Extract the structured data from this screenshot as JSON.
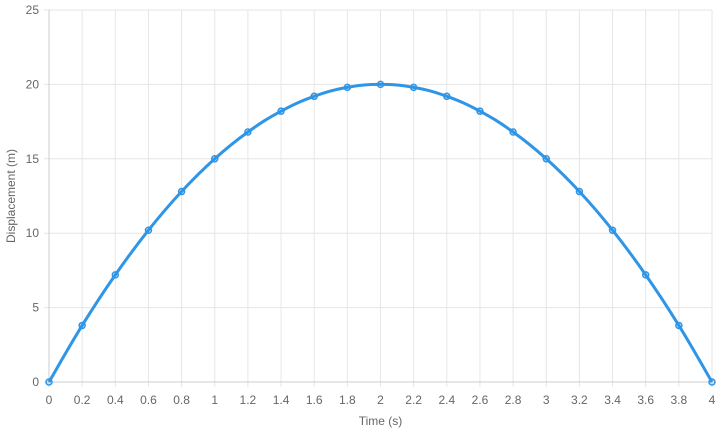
{
  "chart_data": {
    "type": "line",
    "xlabel": "Time (s)",
    "ylabel": "Displacement (m)",
    "x": [
      0,
      0.2,
      0.4,
      0.6,
      0.8,
      1,
      1.2,
      1.4,
      1.6,
      1.8,
      2,
      2.2,
      2.4,
      2.6,
      2.8,
      3,
      3.2,
      3.4,
      3.6,
      3.8,
      4
    ],
    "x_tick_labels": [
      "0",
      "0.2",
      "0.4",
      "0.6",
      "0.8",
      "1",
      "1.2",
      "1.4",
      "1.6",
      "1.8",
      "2",
      "2.2",
      "2.4",
      "2.6",
      "2.8",
      "3",
      "3.2",
      "3.4",
      "3.6",
      "3.8",
      "4"
    ],
    "series": [
      {
        "values": [
          0,
          3.8,
          7.2,
          10.2,
          12.8,
          15,
          16.8,
          18.2,
          19.2,
          19.8,
          20,
          19.8,
          19.2,
          18.2,
          16.8,
          15,
          12.8,
          10.2,
          7.2,
          3.8,
          0
        ],
        "color": "#2f95e6"
      }
    ],
    "y_ticks": [
      0,
      5,
      10,
      15,
      20,
      25
    ],
    "ylim": [
      0,
      25
    ],
    "xlim": [
      0,
      4
    ],
    "grid": true,
    "legend": "none"
  }
}
